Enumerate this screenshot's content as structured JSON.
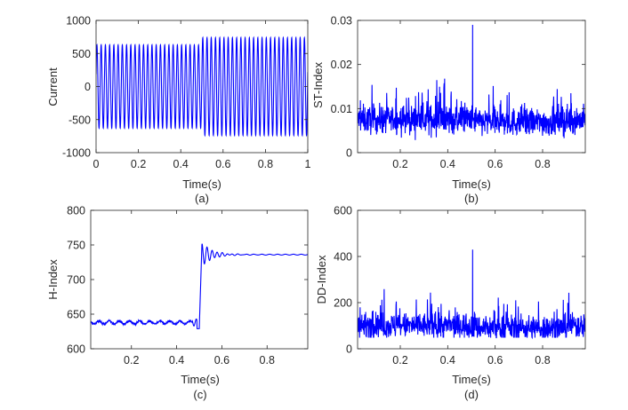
{
  "figure": {
    "line_color": "#0000ff",
    "axis_color": "#262626",
    "background": "#ffffff"
  },
  "chart_data": [
    {
      "id": "a",
      "type": "line",
      "caption": "(a)",
      "xlabel": "Time(s)",
      "ylabel": "Current",
      "xlim": [
        0,
        1
      ],
      "ylim": [
        -1000,
        1000
      ],
      "xticks": [
        0,
        0.2,
        0.4,
        0.6,
        0.8,
        1
      ],
      "xtick_labels": [
        "0",
        "0.2",
        "0.4",
        "0.6",
        "0.8",
        "1"
      ],
      "yticks": [
        -1000,
        -500,
        0,
        500,
        1000
      ],
      "ytick_labels": [
        "-1000",
        "-500",
        "0",
        "500",
        "1000"
      ],
      "grid": false,
      "series": [
        {
          "values_description_omitted": true,
          "kind": "sinusoid",
          "frequency_hz": 50,
          "segments": [
            {
              "x_start": 0,
              "x_end": 0.5,
              "amplitude": 630
            },
            {
              "x_start": 0.5,
              "x_end": 1,
              "amplitude": 740
            }
          ]
        }
      ]
    },
    {
      "id": "b",
      "type": "line",
      "caption": "(b)",
      "xlabel": "Time(s)",
      "ylabel": "ST-Index",
      "xlim": [
        0.02,
        0.98
      ],
      "ylim": [
        0,
        0.03
      ],
      "xticks": [
        0.2,
        0.4,
        0.6,
        0.8
      ],
      "xtick_labels": [
        "0.2",
        "0.4",
        "0.6",
        "0.8"
      ],
      "yticks": [
        0,
        0.01,
        0.02,
        0.03
      ],
      "ytick_labels": [
        "0",
        "0.01",
        "0.02",
        "0.03"
      ],
      "grid": false,
      "series": [
        {
          "kind": "noise",
          "baseline": 0.0075,
          "spread": 0.0035,
          "spike": {
            "x": 0.505,
            "y": 0.029
          }
        }
      ]
    },
    {
      "id": "c",
      "type": "line",
      "caption": "(c)",
      "xlabel": "Time(s)",
      "ylabel": "H-Index",
      "xlim": [
        0.02,
        0.98
      ],
      "ylim": [
        600,
        800
      ],
      "xticks": [
        0.2,
        0.4,
        0.6,
        0.8
      ],
      "xtick_labels": [
        "0.2",
        "0.4",
        "0.6",
        "0.8"
      ],
      "yticks": [
        600,
        650,
        700,
        750,
        800
      ],
      "ytick_labels": [
        "600",
        "650",
        "700",
        "750",
        "800"
      ],
      "grid": false,
      "series": [
        {
          "kind": "step",
          "before": 638,
          "after": 736,
          "step_x": 0.5,
          "overshoot_peak": 753,
          "undershoot_min": 629
        }
      ]
    },
    {
      "id": "d",
      "type": "line",
      "caption": "(d)",
      "xlabel": "Time(s)",
      "ylabel": "DD-Index",
      "xlim": [
        0.02,
        0.98
      ],
      "ylim": [
        0,
        600
      ],
      "xticks": [
        0.2,
        0.4,
        0.6,
        0.8
      ],
      "xtick_labels": [
        "0.2",
        "0.4",
        "0.6",
        "0.8"
      ],
      "yticks": [
        0,
        200,
        400,
        600
      ],
      "ytick_labels": [
        "0",
        "200",
        "400",
        "600"
      ],
      "grid": false,
      "series": [
        {
          "kind": "noise",
          "baseline": 100,
          "spread": 60,
          "spike": {
            "x": 0.505,
            "y": 430
          }
        }
      ]
    }
  ]
}
